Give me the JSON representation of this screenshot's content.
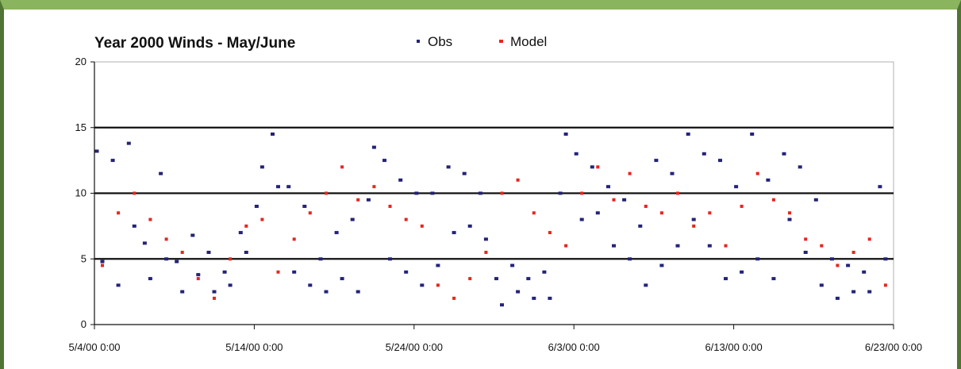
{
  "chart_data": {
    "type": "scatter",
    "title": "Year 2000 Winds - May/June",
    "xlabel": "",
    "ylabel": "",
    "ylim": [
      0,
      20
    ],
    "yticks": [
      0,
      5,
      10,
      15,
      20
    ],
    "xlim": [
      "2000-05-04",
      "2000-06-23"
    ],
    "xticks": [
      "5/4/00 0:00",
      "5/14/00 0:00",
      "5/24/00 0:00",
      "6/3/00 0:00",
      "6/13/00 0:00",
      "6/23/00 0:00"
    ],
    "gridlines_y": [
      5,
      10,
      15
    ],
    "legend_position": "top",
    "series": [
      {
        "name": "Obs",
        "color": "#23237a",
        "x": [
          "2000-05-04",
          "2000-05-04",
          "2000-05-05",
          "2000-05-05",
          "2000-05-06",
          "2000-05-06",
          "2000-05-07",
          "2000-05-07",
          "2000-05-08",
          "2000-05-08",
          "2000-05-09",
          "2000-05-09",
          "2000-05-10",
          "2000-05-10",
          "2000-05-11",
          "2000-05-11",
          "2000-05-12",
          "2000-05-12",
          "2000-05-13",
          "2000-05-13",
          "2000-05-14",
          "2000-05-14",
          "2000-05-15",
          "2000-05-15",
          "2000-05-16",
          "2000-05-16",
          "2000-05-17",
          "2000-05-17",
          "2000-05-18",
          "2000-05-18",
          "2000-05-19",
          "2000-05-19",
          "2000-05-20",
          "2000-05-20",
          "2000-05-21",
          "2000-05-21",
          "2000-05-22",
          "2000-05-22",
          "2000-05-23",
          "2000-05-23",
          "2000-05-24",
          "2000-05-24",
          "2000-05-25",
          "2000-05-25",
          "2000-05-26",
          "2000-05-26",
          "2000-05-27",
          "2000-05-27",
          "2000-05-28",
          "2000-05-28",
          "2000-05-29",
          "2000-05-29",
          "2000-05-30",
          "2000-05-30",
          "2000-05-31",
          "2000-05-31",
          "2000-06-01",
          "2000-06-01",
          "2000-06-02",
          "2000-06-02",
          "2000-06-03",
          "2000-06-03",
          "2000-06-04",
          "2000-06-04",
          "2000-06-05",
          "2000-06-05",
          "2000-06-06",
          "2000-06-06",
          "2000-06-07",
          "2000-06-07",
          "2000-06-08",
          "2000-06-08",
          "2000-06-09",
          "2000-06-09",
          "2000-06-10",
          "2000-06-10",
          "2000-06-11",
          "2000-06-11",
          "2000-06-12",
          "2000-06-12",
          "2000-06-13",
          "2000-06-13",
          "2000-06-14",
          "2000-06-14",
          "2000-06-15",
          "2000-06-15",
          "2000-06-16",
          "2000-06-16",
          "2000-06-17",
          "2000-06-17",
          "2000-06-18",
          "2000-06-18",
          "2000-06-19",
          "2000-06-19",
          "2000-06-20",
          "2000-06-20",
          "2000-06-21",
          "2000-06-21",
          "2000-06-22",
          "2000-06-22"
        ],
        "y": [
          13.2,
          4.8,
          12.5,
          3.0,
          13.8,
          7.5,
          6.2,
          3.5,
          11.5,
          5.0,
          4.8,
          2.5,
          6.8,
          3.8,
          5.5,
          2.5,
          4.0,
          3.0,
          7.0,
          5.5,
          9.0,
          12.0,
          14.5,
          10.5,
          10.5,
          4.0,
          9.0,
          3.0,
          5.0,
          2.5,
          7.0,
          3.5,
          8.0,
          2.5,
          9.5,
          13.5,
          12.5,
          5.0,
          11.0,
          4.0,
          10.0,
          3.0,
          10.0,
          4.5,
          12.0,
          7.0,
          11.5,
          7.5,
          10.0,
          6.5,
          3.5,
          1.5,
          4.5,
          2.5,
          3.5,
          2.0,
          4.0,
          2.0,
          10.0,
          14.5,
          13.0,
          8.0,
          12.0,
          8.5,
          10.5,
          6.0,
          9.5,
          5.0,
          7.5,
          3.0,
          12.5,
          4.5,
          11.5,
          6.0,
          14.5,
          8.0,
          13.0,
          6.0,
          12.5,
          3.5,
          10.5,
          4.0,
          14.5,
          5.0,
          11.0,
          3.5,
          13.0,
          8.0,
          12.0,
          5.5,
          9.5,
          3.0,
          5.0,
          2.0,
          4.5,
          2.5,
          4.0,
          2.5,
          10.5,
          5.0
        ]
      },
      {
        "name": "Model",
        "color": "#e8251f",
        "x": [
          "2000-05-04",
          "2000-05-05",
          "2000-05-06",
          "2000-05-07",
          "2000-05-08",
          "2000-05-09",
          "2000-05-10",
          "2000-05-11",
          "2000-05-12",
          "2000-05-13",
          "2000-05-14",
          "2000-05-15",
          "2000-05-16",
          "2000-05-17",
          "2000-05-18",
          "2000-05-19",
          "2000-05-20",
          "2000-05-21",
          "2000-05-22",
          "2000-05-23",
          "2000-05-24",
          "2000-05-25",
          "2000-05-26",
          "2000-05-27",
          "2000-05-28",
          "2000-05-29",
          "2000-05-30",
          "2000-05-31",
          "2000-06-01",
          "2000-06-02",
          "2000-06-03",
          "2000-06-04",
          "2000-06-05",
          "2000-06-06",
          "2000-06-07",
          "2000-06-08",
          "2000-06-09",
          "2000-06-10",
          "2000-06-11",
          "2000-06-12",
          "2000-06-13",
          "2000-06-14",
          "2000-06-15",
          "2000-06-16",
          "2000-06-17",
          "2000-06-18",
          "2000-06-19",
          "2000-06-20",
          "2000-06-21",
          "2000-06-22"
        ],
        "y": [
          4.5,
          8.5,
          10.0,
          8.0,
          6.5,
          5.5,
          3.5,
          2.0,
          5.0,
          7.5,
          8.0,
          4.0,
          6.5,
          8.5,
          10.0,
          12.0,
          9.5,
          10.5,
          9.0,
          8.0,
          7.5,
          3.0,
          2.0,
          3.5,
          5.5,
          10.0,
          11.0,
          8.5,
          7.0,
          6.0,
          10.0,
          12.0,
          9.5,
          11.5,
          9.0,
          8.5,
          10.0,
          7.5,
          8.5,
          6.0,
          9.0,
          11.5,
          9.5,
          8.5,
          6.5,
          6.0,
          4.5,
          5.5,
          6.5,
          3.0
        ]
      }
    ]
  }
}
